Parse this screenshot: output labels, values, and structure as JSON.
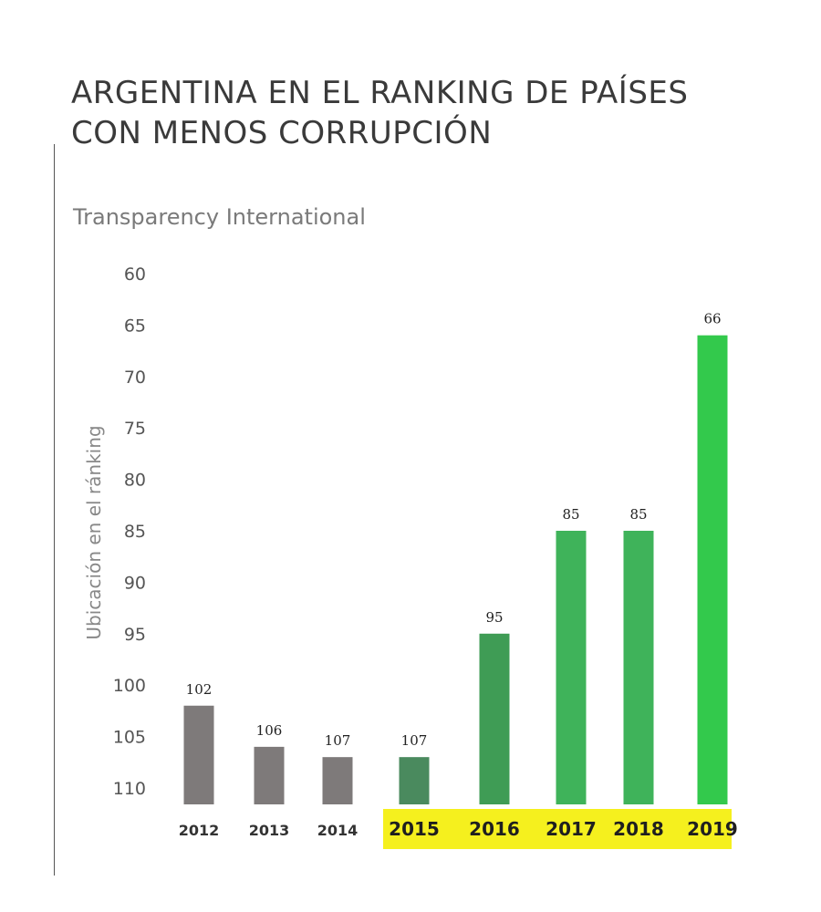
{
  "chart_data": {
    "type": "bar",
    "title": "ARGENTINA EN EL RANKING DE PAÍSES CON MENOS CORRUPCIÓN",
    "title_lines": [
      "ARGENTINA EN EL RANKING DE PAÍSES",
      "CON MENOS CORRUPCIÓN"
    ],
    "subtitle": "Transparency International",
    "ylabel": "Ubicación en el ránking",
    "xlabel": "",
    "categories": [
      "2012",
      "2013",
      "2014",
      "2015",
      "2016",
      "2017",
      "2018",
      "2019"
    ],
    "values": [
      102,
      106,
      107,
      107,
      95,
      85,
      85,
      66
    ],
    "data_labels": [
      "102",
      "106",
      "107",
      "107",
      "95",
      "85",
      "85",
      "66"
    ],
    "y_ticks": [
      "60",
      "65",
      "70",
      "75",
      "80",
      "85",
      "90",
      "95",
      "100",
      "105",
      "110"
    ],
    "ylim": [
      60,
      110
    ],
    "y_inverted": true,
    "grid": false,
    "bar_colors": [
      "#7e7a7a",
      "#7e7a7a",
      "#7e7a7a",
      "#4a8a5e",
      "#3f9c55",
      "#3fb35a",
      "#3fb35a",
      "#33c94c"
    ],
    "highlight_color": "#f5f01e",
    "highlighted_categories": [
      "2015",
      "2016",
      "2017",
      "2018",
      "2019"
    ]
  }
}
